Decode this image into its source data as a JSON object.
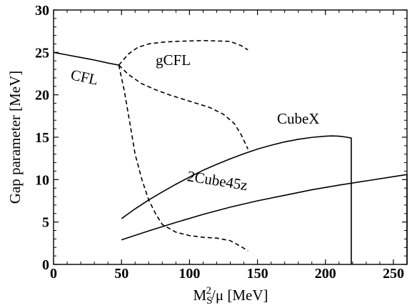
{
  "chart_data": {
    "type": "line",
    "xlabel": "M_S^2/μ [MeV]",
    "xlabel_parts": {
      "base": "M",
      "superscript": "2",
      "subscript": "S",
      "rest": "/μ [MeV]"
    },
    "ylabel": "Gap parameter [MeV]",
    "xlim": [
      0,
      260
    ],
    "ylim": [
      0,
      30
    ],
    "x_ticks": [
      0,
      50,
      100,
      150,
      200,
      250
    ],
    "y_ticks": [
      0,
      5,
      10,
      15,
      20,
      25,
      30
    ],
    "x_tick_labels": [
      "0",
      "50",
      "100",
      "150",
      "200",
      "250"
    ],
    "y_tick_labels": [
      "0",
      "5",
      "10",
      "15",
      "20",
      "25",
      "30"
    ],
    "grid": false,
    "legend": "none",
    "annotations": [
      {
        "text": "CFL",
        "x": 22,
        "y": 21.5,
        "rotation": 12
      },
      {
        "text": "gCFL",
        "x": 88,
        "y": 23.5,
        "rotation": 0
      },
      {
        "text": "CubeX",
        "x": 180,
        "y": 16.6,
        "rotation": 0
      },
      {
        "text": "2Cube45z",
        "x": 120,
        "y": 9.3,
        "rotation": 9
      }
    ],
    "series": [
      {
        "style": "solid",
        "x": [
          0,
          10,
          20,
          30,
          40,
          48
        ],
        "y": [
          25.0,
          24.7,
          24.4,
          24.1,
          23.75,
          23.5
        ]
      },
      {
        "style": "dashed",
        "x": [
          48,
          55,
          62,
          70,
          80,
          90,
          100,
          110,
          120,
          130,
          138,
          143
        ],
        "y": [
          23.5,
          24.8,
          25.6,
          26.0,
          26.2,
          26.3,
          26.35,
          26.4,
          26.35,
          26.3,
          25.8,
          25.3
        ]
      },
      {
        "style": "dashed",
        "x": [
          48,
          55,
          65,
          75,
          85,
          95,
          105,
          115,
          125,
          133,
          138,
          143
        ],
        "y": [
          23.5,
          22.4,
          21.3,
          20.6,
          20.0,
          19.5,
          19.0,
          18.5,
          17.7,
          16.6,
          15.3,
          13.6
        ]
      },
      {
        "style": "dashed",
        "x": [
          48,
          52,
          56,
          60,
          65,
          70,
          75,
          80,
          90,
          100,
          110,
          120,
          130,
          138,
          143
        ],
        "y": [
          23.5,
          20.5,
          16.8,
          13.0,
          10.0,
          7.6,
          6.0,
          4.7,
          3.8,
          3.4,
          3.2,
          3.1,
          2.8,
          2.1,
          1.6
        ]
      },
      {
        "style": "solid",
        "x": [
          50,
          60,
          70,
          80,
          90,
          100,
          110,
          120,
          130,
          140,
          150,
          160,
          170,
          180,
          190,
          200,
          205,
          210,
          215,
          219,
          219
        ],
        "y": [
          5.4,
          6.55,
          7.6,
          8.55,
          9.45,
          10.3,
          11.1,
          11.8,
          12.45,
          13.05,
          13.6,
          14.05,
          14.45,
          14.75,
          14.98,
          15.12,
          15.15,
          15.12,
          15.02,
          14.9,
          0
        ]
      },
      {
        "style": "solid",
        "x": [
          50,
          70,
          90,
          110,
          130,
          150,
          170,
          190,
          210,
          230,
          250,
          258,
          260,
          260
        ],
        "y": [
          2.9,
          3.95,
          4.95,
          5.9,
          6.75,
          7.5,
          8.15,
          8.8,
          9.35,
          9.85,
          10.35,
          10.55,
          10.6,
          0
        ]
      }
    ]
  }
}
